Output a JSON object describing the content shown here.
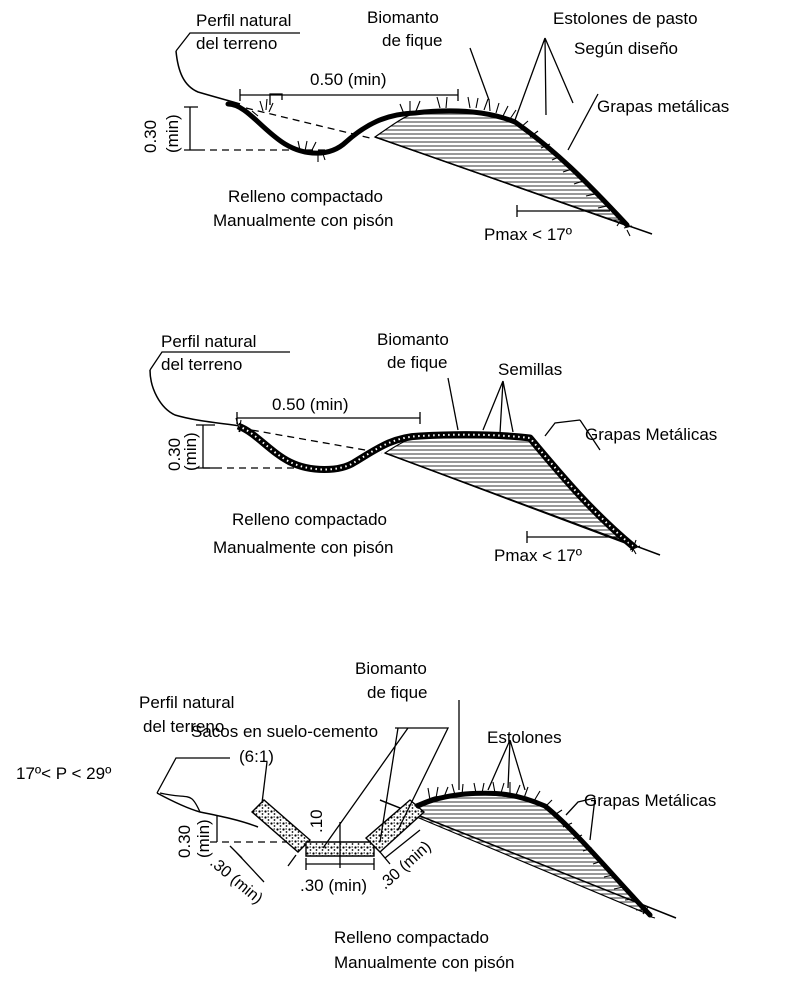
{
  "panel1": {
    "perfil_1": "Perfil natural",
    "perfil_2": "del terreno",
    "biomanto_1": "Biomanto",
    "biomanto_2": "de fique",
    "estolones": "Estolones de pasto",
    "segun": "Según diseño",
    "grapas": "Grapas metálicas",
    "dim_width": "0.50 (min)",
    "dim_depth_1": "0.30",
    "dim_depth_2": "(min)",
    "relleno_1": "Relleno compactado",
    "relleno_2": "Manualmente con pisón",
    "pmax": "Pmax < 17º"
  },
  "panel2": {
    "perfil_1": "Perfil natural",
    "perfil_2": "del terreno",
    "biomanto_1": "Biomanto",
    "biomanto_2": "de fique",
    "semillas": "Semillas",
    "grapas": "Grapas Metálicas",
    "dim_width": "0.50 (min)",
    "dim_depth_1": "0.30",
    "dim_depth_2": "(min)",
    "relleno_1": "Relleno compactado",
    "relleno_2": "Manualmente con pisón",
    "pmax": "Pmax < 17º"
  },
  "panel3": {
    "perfil_1": "Perfil natural",
    "perfil_2": "del terreno",
    "biomanto_1": "Biomanto",
    "biomanto_2": "de fique",
    "sacos": "Sacos en suelo-cemento",
    "ratio": "(6:1)",
    "estolones": "Estolones",
    "grapas": "Grapas Metálicas",
    "slope_range": "17º< P < 29º",
    "dim_depth_1": "0.30",
    "dim_depth_2": "(min)",
    "dim_thick": ".10",
    "dim_left": ".30 (min)",
    "dim_bottom": ".30 (min)",
    "dim_right": ".30 (min)",
    "relleno_1": "Relleno compactado",
    "relleno_2": "Manualmente con pisón"
  }
}
